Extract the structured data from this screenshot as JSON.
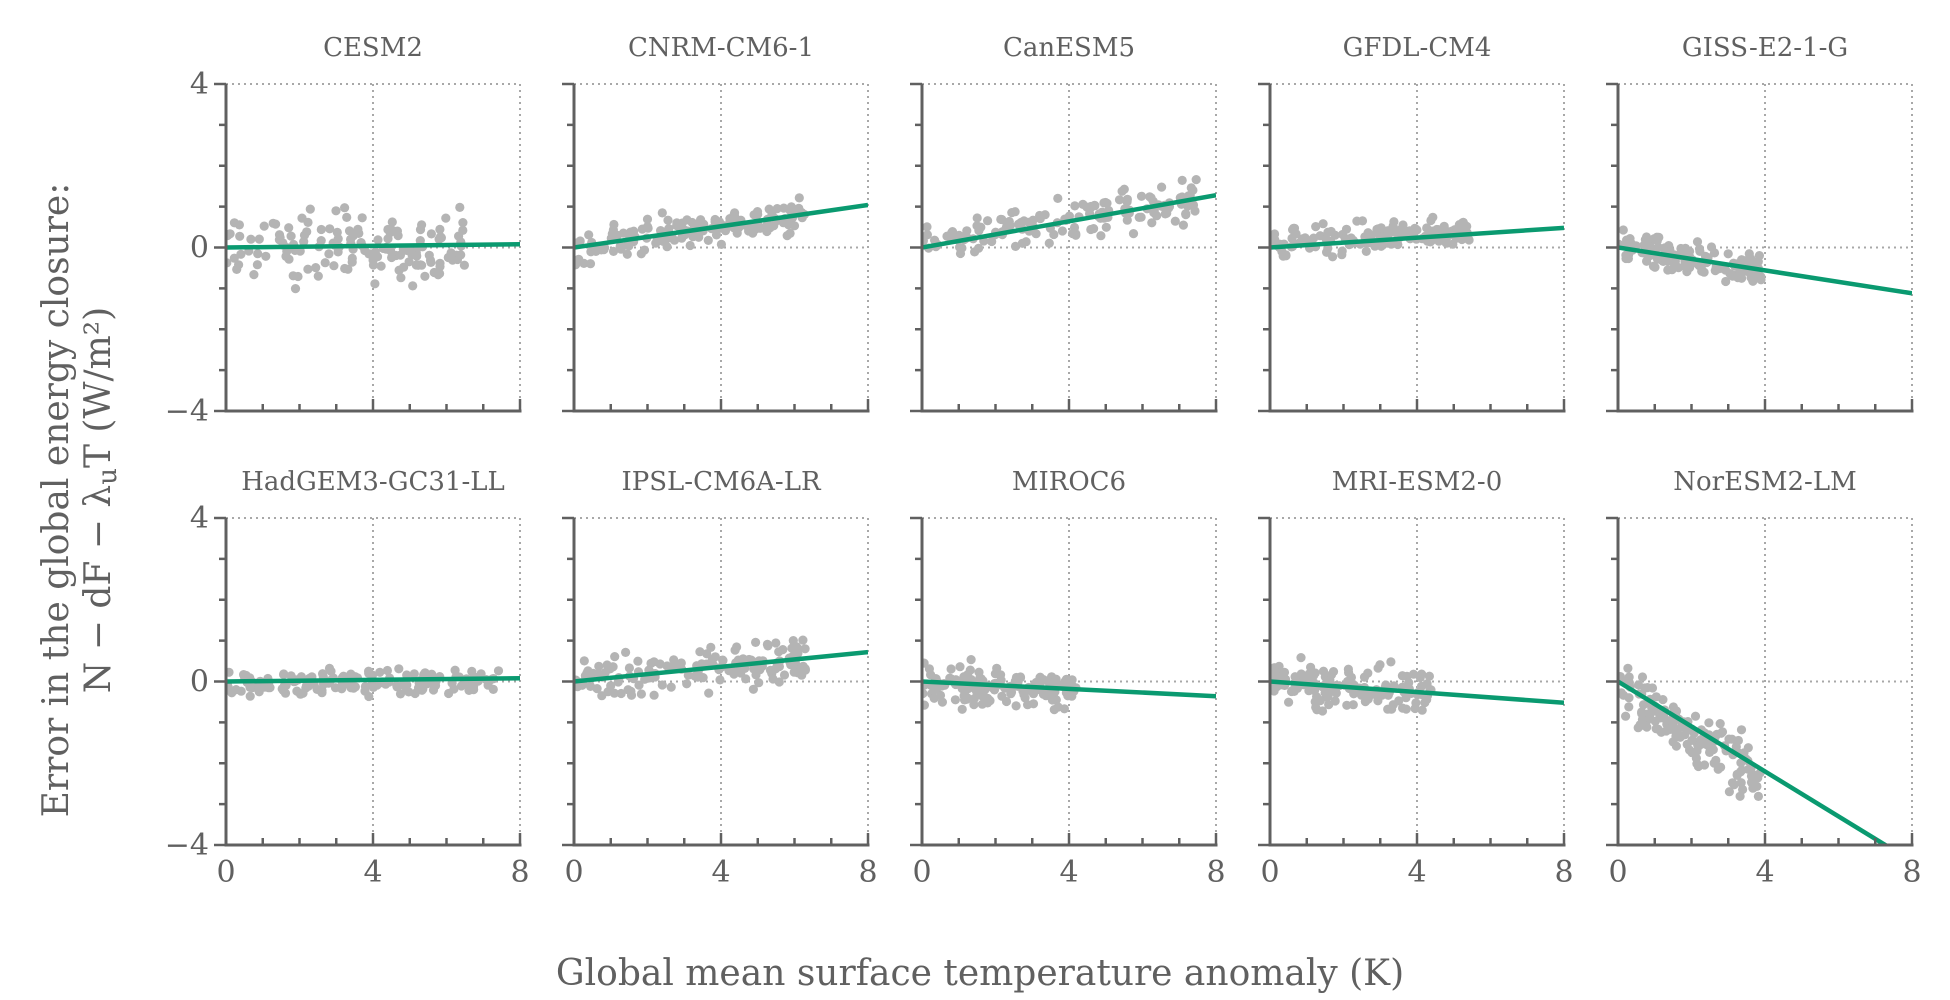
{
  "figure": {
    "xlabel": "Global mean surface temperature anomaly (K)",
    "ylabel_line1": "Error in the global energy closure:",
    "ylabel_line2": "N − dF − λ",
    "ylabel_sub": "u",
    "ylabel_line2_end": "T (W/m²)"
  },
  "chart_data": {
    "type": "scatter",
    "xlim": [
      0,
      8
    ],
    "ylim": [
      -4,
      4
    ],
    "xticks": [
      0,
      4,
      8
    ],
    "yticks": [
      -4,
      0,
      4
    ],
    "grid": "dotted at x=4 and y=0",
    "colors": {
      "points": "#b4b4b4",
      "fit": "#0a9a70",
      "axes": "#606060",
      "grid": "#a8a8a8"
    },
    "panels": [
      {
        "name": "CESM2",
        "slope": 0.01,
        "x_range": [
          0,
          6.5
        ],
        "y_mean_at_x0": -0.05,
        "spread": 0.42
      },
      {
        "name": "CNRM-CM6-1",
        "slope": 0.13,
        "x_range": [
          0,
          6.3
        ],
        "y_mean_at_x0": 0.0,
        "spread": 0.2
      },
      {
        "name": "CanESM5",
        "slope": 0.16,
        "x_range": [
          0,
          7.5
        ],
        "y_mean_at_x0": 0.05,
        "spread": 0.25
      },
      {
        "name": "GFDL-CM4",
        "slope": 0.06,
        "x_range": [
          0,
          5.5
        ],
        "y_mean_at_x0": 0.05,
        "spread": 0.18
      },
      {
        "name": "GISS-E2-1-G",
        "slope": -0.14,
        "x_range": [
          0,
          3.9
        ],
        "y_mean_at_x0": 0.0,
        "spread": 0.18
      },
      {
        "name": "HadGEM3-GC31-LL",
        "slope": 0.01,
        "x_range": [
          0,
          7.5
        ],
        "y_mean_at_x0": -0.05,
        "spread": 0.15
      },
      {
        "name": "IPSL-CM6A-LR",
        "slope": 0.09,
        "x_range": [
          0,
          6.3
        ],
        "y_mean_at_x0": 0.0,
        "spread": 0.3
      },
      {
        "name": "MIROC6",
        "slope": -0.045,
        "x_range": [
          0,
          4.2
        ],
        "y_mean_at_x0": -0.05,
        "spread": 0.22
      },
      {
        "name": "MRI-ESM2-0",
        "slope": -0.065,
        "x_range": [
          0,
          4.4
        ],
        "y_mean_at_x0": 0.0,
        "spread": 0.25
      },
      {
        "name": "NorESM2-LM",
        "slope": -0.55,
        "x_range": [
          0,
          3.9
        ],
        "y_mean_at_x0": -0.2,
        "spread": 0.35
      }
    ]
  }
}
